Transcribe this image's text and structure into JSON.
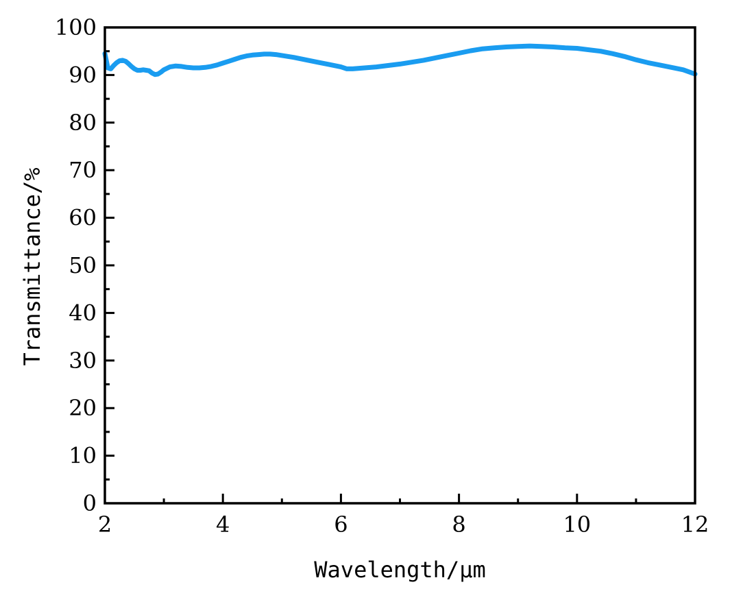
{
  "chart_data": {
    "type": "line",
    "title": "",
    "xlabel": "Wavelength/μm",
    "ylabel": "Transmittance/%",
    "xlim": [
      2,
      12
    ],
    "ylim": [
      0,
      100
    ],
    "x_ticks": [
      "2",
      "4",
      "6",
      "8",
      "10",
      "12"
    ],
    "y_ticks": [
      "0",
      "10",
      "20",
      "30",
      "40",
      "50",
      "60",
      "70",
      "80",
      "90",
      "100"
    ],
    "grid": false,
    "legend": "none",
    "series": [
      {
        "color": "#1a9cf0",
        "x": [
          2.0,
          2.05,
          2.1,
          2.15,
          2.2,
          2.25,
          2.3,
          2.35,
          2.4,
          2.45,
          2.5,
          2.55,
          2.6,
          2.65,
          2.7,
          2.75,
          2.8,
          2.85,
          2.9,
          2.95,
          3.0,
          3.1,
          3.2,
          3.3,
          3.4,
          3.5,
          3.6,
          3.7,
          3.8,
          3.9,
          4.0,
          4.1,
          4.2,
          4.3,
          4.4,
          4.5,
          4.6,
          4.7,
          4.8,
          4.9,
          5.0,
          5.2,
          5.4,
          5.6,
          5.8,
          6.0,
          6.1,
          6.2,
          6.4,
          6.6,
          6.8,
          7.0,
          7.2,
          7.4,
          7.6,
          7.8,
          8.0,
          8.2,
          8.4,
          8.6,
          8.8,
          9.0,
          9.2,
          9.4,
          9.6,
          9.8,
          10.0,
          10.2,
          10.4,
          10.6,
          10.8,
          11.0,
          11.2,
          11.4,
          11.6,
          11.8,
          12.0
        ],
        "y": [
          94.5,
          91.5,
          91.3,
          92.0,
          92.6,
          93.0,
          93.1,
          92.9,
          92.4,
          91.8,
          91.3,
          91.0,
          91.0,
          91.1,
          91.0,
          90.9,
          90.4,
          90.1,
          90.2,
          90.6,
          91.1,
          91.7,
          91.9,
          91.8,
          91.6,
          91.5,
          91.5,
          91.6,
          91.8,
          92.1,
          92.5,
          92.9,
          93.3,
          93.7,
          94.0,
          94.2,
          94.3,
          94.4,
          94.4,
          94.3,
          94.1,
          93.7,
          93.2,
          92.7,
          92.2,
          91.7,
          91.3,
          91.3,
          91.5,
          91.7,
          92.0,
          92.3,
          92.7,
          93.1,
          93.6,
          94.1,
          94.6,
          95.1,
          95.5,
          95.7,
          95.9,
          96.0,
          96.1,
          96.0,
          95.9,
          95.7,
          95.6,
          95.3,
          95.0,
          94.5,
          93.9,
          93.2,
          92.6,
          92.1,
          91.6,
          91.1,
          90.2
        ]
      }
    ]
  },
  "axes": {
    "x_title": "Wavelength/μm",
    "y_title": "Transmittance/%"
  }
}
